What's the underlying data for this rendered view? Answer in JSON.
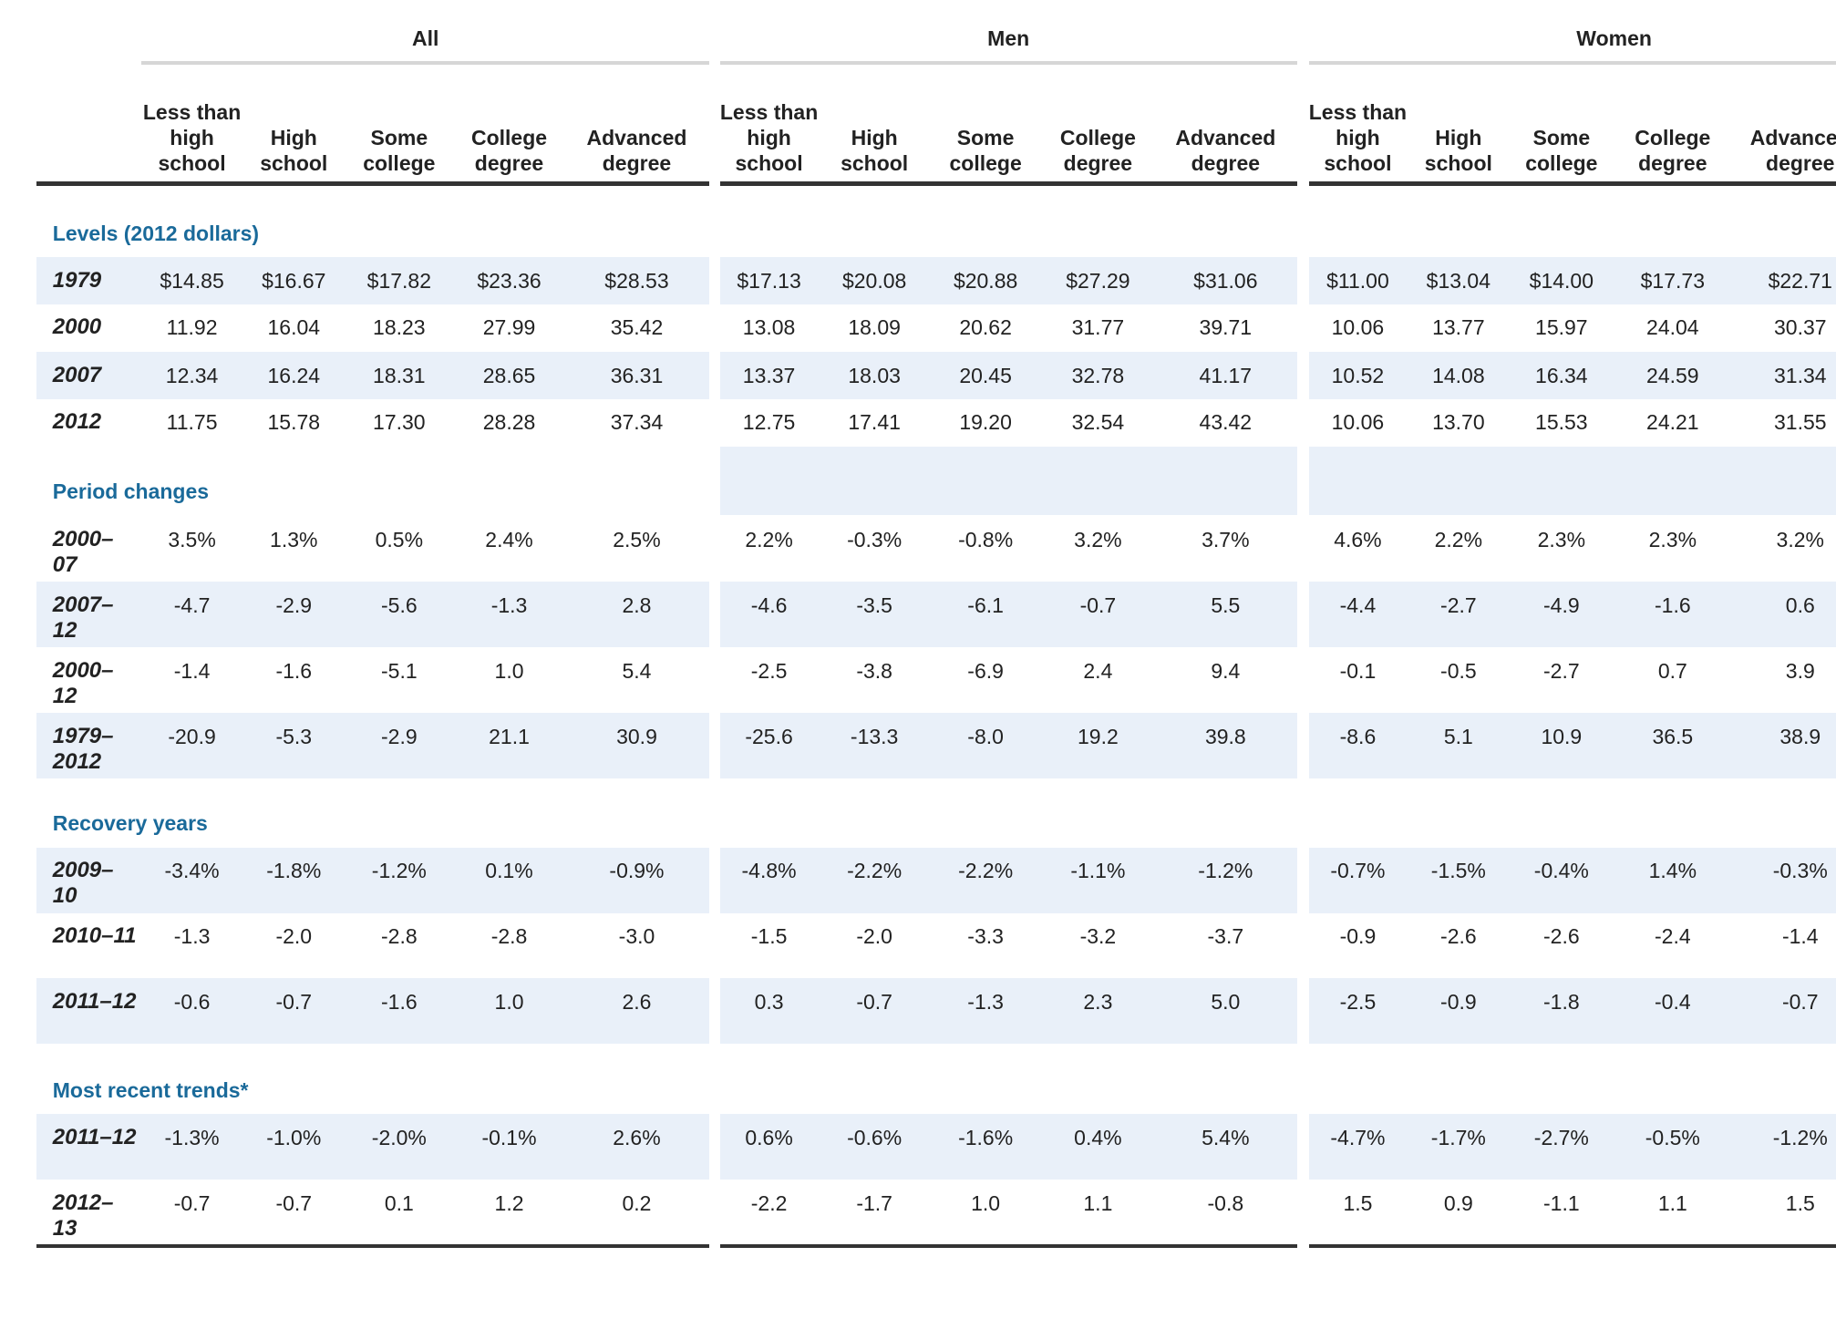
{
  "header": {
    "groups": [
      "All",
      "Men",
      "Women"
    ],
    "columns": [
      "Less than high school",
      "High school",
      "Some college",
      "College degree",
      "Advanced degree"
    ]
  },
  "sections": [
    {
      "title": "Levels (2012 dollars)",
      "rows": [
        {
          "label": "1979",
          "values": [
            "$14.85",
            "$16.67",
            "$17.82",
            "$23.36",
            "$28.53",
            "$17.13",
            "$20.08",
            "$20.88",
            "$27.29",
            "$31.06",
            "$11.00",
            "$13.04",
            "$14.00",
            "$17.73",
            "$22.71"
          ]
        },
        {
          "label": "2000",
          "values": [
            "11.92",
            "16.04",
            "18.23",
            "27.99",
            "35.42",
            "13.08",
            "18.09",
            "20.62",
            "31.77",
            "39.71",
            "10.06",
            "13.77",
            "15.97",
            "24.04",
            "30.37"
          ]
        },
        {
          "label": "2007",
          "values": [
            "12.34",
            "16.24",
            "18.31",
            "28.65",
            "36.31",
            "13.37",
            "18.03",
            "20.45",
            "32.78",
            "41.17",
            "10.52",
            "14.08",
            "16.34",
            "24.59",
            "31.34"
          ]
        },
        {
          "label": "2012",
          "values": [
            "11.75",
            "15.78",
            "17.30",
            "28.28",
            "37.34",
            "12.75",
            "17.41",
            "19.20",
            "32.54",
            "43.42",
            "10.06",
            "13.70",
            "15.53",
            "24.21",
            "31.55"
          ]
        }
      ]
    },
    {
      "title": "Period changes",
      "rows": [
        {
          "label": "2000–07",
          "values": [
            "3.5%",
            "1.3%",
            "0.5%",
            "2.4%",
            "2.5%",
            "2.2%",
            "-0.3%",
            "-0.8%",
            "3.2%",
            "3.7%",
            "4.6%",
            "2.2%",
            "2.3%",
            "2.3%",
            "3.2%"
          ]
        },
        {
          "label": "2007–12",
          "values": [
            "-4.7",
            "-2.9",
            "-5.6",
            "-1.3",
            "2.8",
            "-4.6",
            "-3.5",
            "-6.1",
            "-0.7",
            "5.5",
            "-4.4",
            "-2.7",
            "-4.9",
            "-1.6",
            "0.6"
          ]
        },
        {
          "label": "2000–12",
          "values": [
            "-1.4",
            "-1.6",
            "-5.1",
            "1.0",
            "5.4",
            "-2.5",
            "-3.8",
            "-6.9",
            "2.4",
            "9.4",
            "-0.1",
            "-0.5",
            "-2.7",
            "0.7",
            "3.9"
          ]
        },
        {
          "label": "1979–2012",
          "values": [
            "-20.9",
            "-5.3",
            "-2.9",
            "21.1",
            "30.9",
            "-25.6",
            "-13.3",
            "-8.0",
            "19.2",
            "39.8",
            "-8.6",
            "5.1",
            "10.9",
            "36.5",
            "38.9"
          ]
        }
      ]
    },
    {
      "title": "Recovery years",
      "rows": [
        {
          "label": "2009–10",
          "values": [
            "-3.4%",
            "-1.8%",
            "-1.2%",
            "0.1%",
            "-0.9%",
            "-4.8%",
            "-2.2%",
            "-2.2%",
            "-1.1%",
            "-1.2%",
            "-0.7%",
            "-1.5%",
            "-0.4%",
            "1.4%",
            "-0.3%"
          ]
        },
        {
          "label": "2010–11",
          "values": [
            "-1.3",
            "-2.0",
            "-2.8",
            "-2.8",
            "-3.0",
            "-1.5",
            "-2.0",
            "-3.3",
            "-3.2",
            "-3.7",
            "-0.9",
            "-2.6",
            "-2.6",
            "-2.4",
            "-1.4"
          ]
        },
        {
          "label": "2011–12",
          "values": [
            "-0.6",
            "-0.7",
            "-1.6",
            "1.0",
            "2.6",
            "0.3",
            "-0.7",
            "-1.3",
            "2.3",
            "5.0",
            "-2.5",
            "-0.9",
            "-1.8",
            "-0.4",
            "-0.7"
          ]
        }
      ]
    },
    {
      "title": "Most recent trends*",
      "rows": [
        {
          "label": "2011–12",
          "values": [
            "-1.3%",
            "-1.0%",
            "-2.0%",
            "-0.1%",
            "2.6%",
            "0.6%",
            "-0.6%",
            "-1.6%",
            "0.4%",
            "5.4%",
            "-4.7%",
            "-1.7%",
            "-2.7%",
            "-0.5%",
            "-1.2%"
          ]
        },
        {
          "label": "2012–13",
          "values": [
            "-0.7",
            "-0.7",
            "0.1",
            "1.2",
            "0.2",
            "-2.2",
            "-1.7",
            "1.0",
            "1.1",
            "-0.8",
            "1.5",
            "0.9",
            "-1.1",
            "1.1",
            "1.5"
          ]
        }
      ]
    }
  ]
}
